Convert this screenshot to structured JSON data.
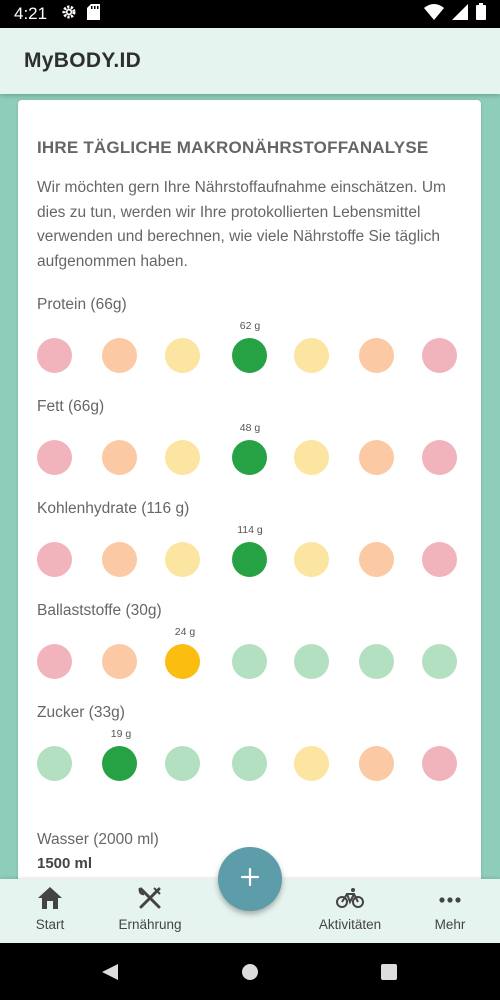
{
  "status_bar": {
    "time": "4:21"
  },
  "app_bar": {
    "title": "MyBODY.ID"
  },
  "card": {
    "title": "IHRE TÄGLICHE MAKRONÄHRSTOFFANALYSE",
    "description": "Wir möchten gern Ihre Nährstoffaufnahme einschätzen. Um dies zu tun, werden wir Ihre protokollierten Lebensmittel verwenden und berechnen, wie viele Nährstoffe Sie täglich aufgenommen haben."
  },
  "nutrients": [
    {
      "label": "Protein (66g)",
      "value_label": "62 g",
      "active_index": 3,
      "scale": [
        "red",
        "orange",
        "yellow",
        "green",
        "yellow",
        "orange",
        "red"
      ]
    },
    {
      "label": "Fett (66g)",
      "value_label": "48 g",
      "active_index": 3,
      "scale": [
        "red",
        "orange",
        "yellow",
        "green",
        "yellow",
        "orange",
        "red"
      ]
    },
    {
      "label": "Kohlenhydrate (116 g)",
      "value_label": "114 g",
      "active_index": 3,
      "scale": [
        "red",
        "orange",
        "yellow",
        "green",
        "yellow",
        "orange",
        "red"
      ]
    },
    {
      "label": "Ballaststoffe (30g)",
      "value_label": "24 g",
      "active_index": 2,
      "scale": [
        "red",
        "orange",
        "amber",
        "lgreen",
        "lgreen",
        "lgreen",
        "lgreen"
      ]
    },
    {
      "label": "Zucker (33g)",
      "value_label": "19 g",
      "active_index": 1,
      "scale": [
        "lgreen",
        "green",
        "lgreen",
        "lgreen",
        "yellow",
        "orange",
        "red"
      ]
    }
  ],
  "water": {
    "label": "Wasser (2000 ml)",
    "value": "1500 ml"
  },
  "colors": {
    "red": "#f1b3bc",
    "orange": "#fbc9a3",
    "yellow": "#fce4a1",
    "green": "#26a143",
    "lgreen": "#b3e0c0",
    "amber": "#fbbe10",
    "fab": "#5d9ca9",
    "background": "#8ecdb9",
    "app_bar": "#e6f4ef"
  },
  "bottom_nav": {
    "items": [
      {
        "label": "Start",
        "icon": "home-icon"
      },
      {
        "label": "Ernährung",
        "icon": "cutlery-icon"
      },
      {
        "label": "Aktivitäten",
        "icon": "bicycle-icon"
      },
      {
        "label": "Mehr",
        "icon": "more-icon"
      }
    ],
    "fab_icon": "plus-icon"
  },
  "icons": {
    "status_left": [
      "settings-icon",
      "sd-card-icon"
    ],
    "status_right": [
      "wifi-icon",
      "signal-icon",
      "battery-icon"
    ],
    "system_nav": [
      "back-icon",
      "home-circle-icon",
      "recents-icon"
    ]
  }
}
